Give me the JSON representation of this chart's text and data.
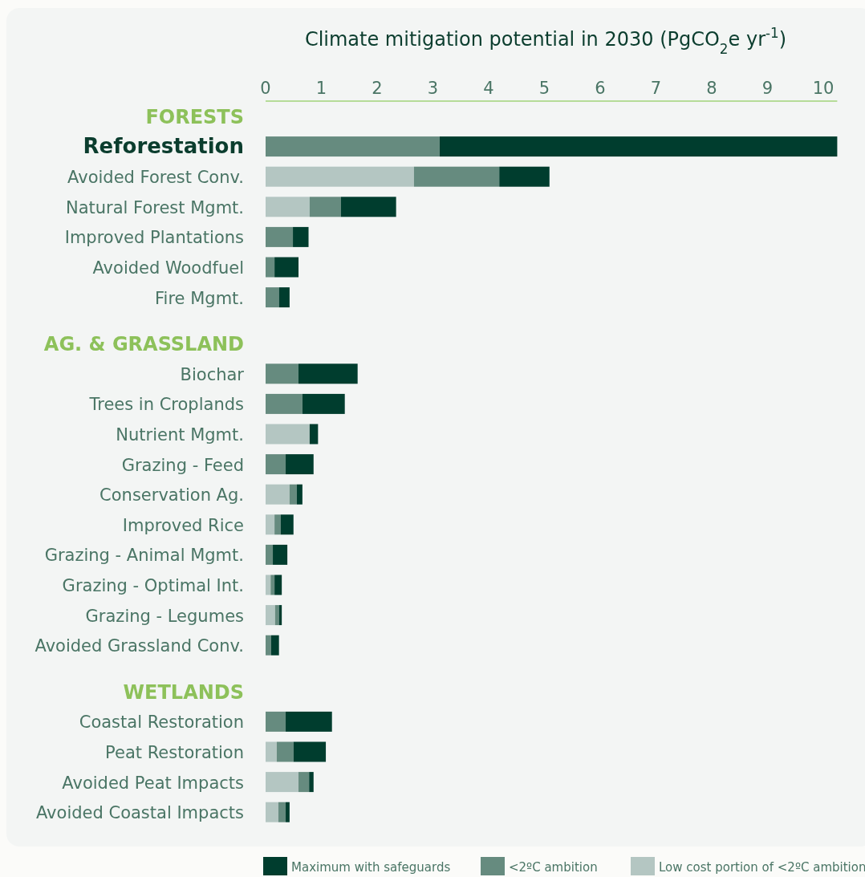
{
  "chart_data": {
    "type": "bar",
    "orientation": "horizontal",
    "stacked": true,
    "xlabel": "Climate mitigation potential in 2030 (PgCO$_{2}$e yr$^{-1}$)",
    "categories": [
      "FORESTS",
      "Reforestation",
      "Avoided Forest Conv.",
      "Natural Forest Mgmt.",
      "Improved Plantations",
      "Avoided Woodfuel",
      "Fire Mgmt.",
      "AG. & GRASSLAND",
      "Biochar",
      "Trees in Croplands",
      "Nutrient Mgmt.",
      "Grazing - Feed",
      "Conservation Ag.",
      "Improved Rice",
      "Grazing - Animal Mgmt.",
      "Grazing - Optimal Int.",
      "Grazing - Legumes",
      "Avoided Grassland Conv.",
      "WETLANDS",
      "Coastal Restoration",
      "Peat Restoration",
      "Avoided Peat Impacts",
      "Avoided Coastal Impacts"
    ],
    "series": [
      {
        "name": "Low cost portion of <2ºC ambition",
        "color": "#b4c6c2",
        "values": [
          null,
          0,
          2.66,
          0.79,
          0,
          0,
          0,
          null,
          0,
          0,
          0.79,
          0,
          0.43,
          0.16,
          0,
          0.09,
          0.17,
          0,
          null,
          0,
          0.2,
          0.59,
          0.23
        ]
      },
      {
        "name": "<2ºC ambition",
        "color": "#668b7f",
        "values": [
          null,
          3.12,
          1.53,
          0.56,
          0.49,
          0.16,
          0.24,
          null,
          0.59,
          0.66,
          0,
          0.36,
          0.13,
          0.11,
          0.13,
          0.07,
          0.07,
          0.1,
          null,
          0.36,
          0.3,
          0.19,
          0.13
        ]
      },
      {
        "name": "Maximum with safeguards",
        "color": "#003d2e",
        "values": [
          null,
          7.13,
          0.9,
          0.99,
          0.28,
          0.43,
          0.19,
          null,
          1.06,
          0.76,
          0.15,
          0.5,
          0.1,
          0.23,
          0.26,
          0.13,
          0.05,
          0.14,
          null,
          0.83,
          0.58,
          0.08,
          0.07
        ]
      }
    ],
    "xlim": [
      0,
      10.25
    ],
    "xticks": [
      0,
      1,
      2,
      3,
      4,
      5,
      6,
      7,
      8,
      9,
      10
    ],
    "grid": false,
    "legend": "bottom"
  }
}
